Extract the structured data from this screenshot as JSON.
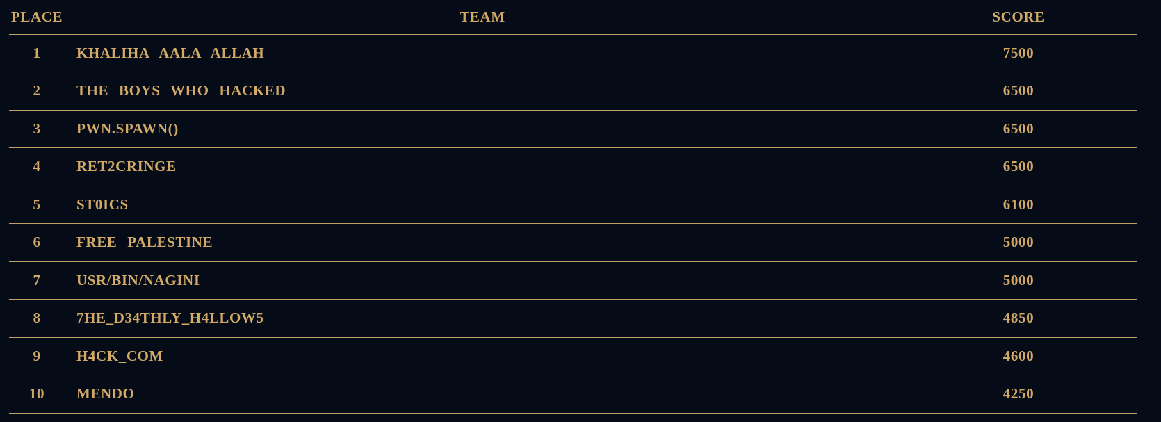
{
  "colors": {
    "background": "#050b17",
    "text_gold": "#d2a967",
    "divider_gold": "#c2a169"
  },
  "table": {
    "headers": {
      "place": "PLACE",
      "team": "TEAM",
      "score": "SCORE"
    },
    "rows": [
      {
        "place": "1",
        "team": "KHALIHA AALA ALLAH",
        "score": "7500"
      },
      {
        "place": "2",
        "team": "THE BOYS WHO HACKED",
        "score": "6500"
      },
      {
        "place": "3",
        "team": "PWN.SPAWN()",
        "score": "6500"
      },
      {
        "place": "4",
        "team": "RET2CRINGE",
        "score": "6500"
      },
      {
        "place": "5",
        "team": "ST0ICS",
        "score": "6100"
      },
      {
        "place": "6",
        "team": "FREE PALESTINE",
        "score": "5000"
      },
      {
        "place": "7",
        "team": "USR/BIN/NAGINI",
        "score": "5000"
      },
      {
        "place": "8",
        "team": "7HE_D34THLY_H4LLOW5",
        "score": "4850"
      },
      {
        "place": "9",
        "team": "H4CK_COM",
        "score": "4600"
      },
      {
        "place": "10",
        "team": "MENDO",
        "score": "4250"
      }
    ]
  }
}
